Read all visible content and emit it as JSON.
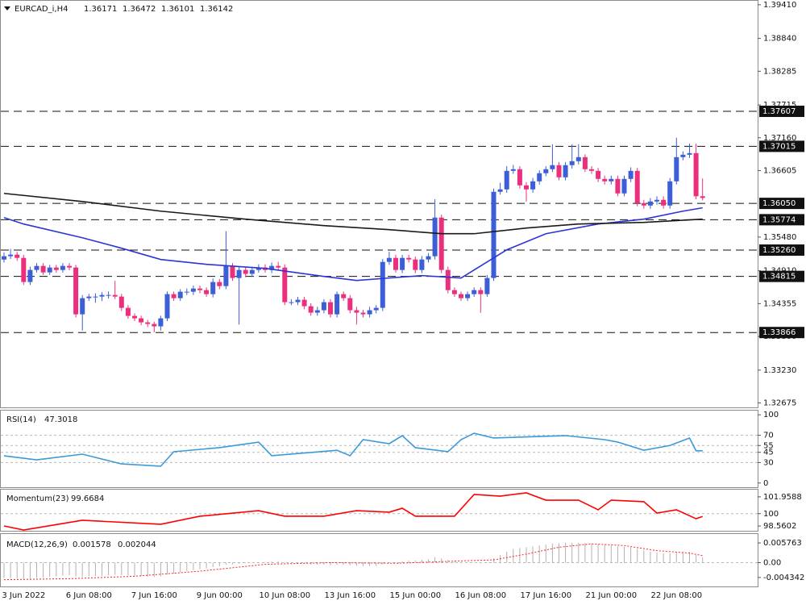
{
  "chart_data": [
    {
      "type": "candlestick",
      "symbol": "EURCAD_i,H4",
      "categories": [
        null,
        null,
        null,
        "3 Jun 2022",
        null,
        null,
        null,
        null,
        null,
        null,
        null,
        null,
        null,
        "6 Jun 08:00",
        null,
        null,
        null,
        null,
        null,
        null,
        null,
        null,
        null,
        "7 Jun 16:00",
        null,
        null,
        null,
        null,
        null,
        null,
        null,
        null,
        null,
        "9 Jun 00:00",
        null,
        null,
        null,
        null,
        null,
        null,
        null,
        null,
        null,
        "10 Jun 08:00",
        null,
        null,
        null,
        null,
        null,
        null,
        null,
        null,
        null,
        "13 Jun 16:00",
        null,
        null,
        null,
        null,
        null,
        null,
        null,
        null,
        null,
        "15 Jun 00:00",
        null,
        null,
        null,
        null,
        null,
        null,
        null,
        null,
        null,
        "16 Jun 08:00",
        null,
        null,
        null,
        null,
        null,
        null,
        null,
        null,
        null,
        "17 Jun 16:00",
        null,
        null,
        null,
        null,
        null,
        null,
        null,
        null,
        null,
        "21 Jun 00:00",
        null,
        null,
        null,
        null,
        null,
        null,
        null,
        null,
        null,
        "22 Jun 08:00",
        null,
        null,
        null,
        null
      ],
      "open": [
        1.351,
        1.35156,
        1.35183,
        1.35128,
        1.3472,
        1.34924,
        1.34992,
        1.34883,
        1.34965,
        1.34924,
        1.34992,
        1.34965,
        1.34174,
        1.34447,
        1.34474,
        1.34474,
        1.34501,
        1.34501,
        1.34474,
        1.34283,
        1.34147,
        1.34106,
        1.34038,
        1.34011,
        1.3397,
        1.34106,
        1.34515,
        1.34447,
        1.34556,
        1.34556,
        1.3461,
        1.34583,
        1.34515,
        1.3472,
        1.34651,
        1.34992,
        1.34788,
        1.34924,
        1.34858,
        1.34924,
        1.34965,
        1.34924,
        1.34992,
        1.34965,
        1.34379,
        1.34379,
        1.3442,
        1.34311,
        1.34202,
        1.34243,
        1.34379,
        1.34174,
        1.34515,
        1.34447,
        1.34243,
        1.34202,
        1.34174,
        1.34243,
        1.34283,
        1.3506,
        1.35128,
        1.34924,
        1.35128,
        1.35101,
        1.34924,
        1.35101,
        1.35156,
        1.3581,
        1.34924,
        1.34583,
        1.34515,
        1.34447,
        1.34515,
        1.34583,
        1.34515,
        1.34788,
        1.36246,
        1.36287,
        1.366,
        1.36628,
        1.36355,
        1.36287,
        1.36423,
        1.3656,
        1.36628,
        1.36696,
        1.36491,
        1.36696,
        1.36764,
        1.36832,
        1.36628,
        1.366,
        1.36464,
        1.36423,
        1.36464,
        1.36219,
        1.36464,
        1.366,
        1.36055,
        1.36014,
        1.36082,
        1.3611,
        1.36014,
        1.36423,
        1.36832,
        1.36873,
        1.369,
        1.36171
      ],
      "high": [
        1.3522,
        1.3528,
        1.3523,
        1.3518,
        1.3498,
        1.3504,
        1.3504,
        1.3501,
        1.3501,
        1.3504,
        1.3504,
        1.3501,
        1.345,
        1.3452,
        1.3453,
        1.3455,
        1.3456,
        1.3474,
        1.3452,
        1.3433,
        1.3419,
        1.3415,
        1.3408,
        1.3405,
        1.3415,
        1.3456,
        1.3456,
        1.346,
        1.3461,
        1.3466,
        1.3466,
        1.3463,
        1.3478,
        1.3477,
        1.3558,
        1.3504,
        1.3498,
        1.3498,
        1.3498,
        1.3502,
        1.3502,
        1.3505,
        1.3506,
        1.3502,
        1.3443,
        1.3447,
        1.3447,
        1.3436,
        1.343,
        1.3443,
        1.3443,
        1.3456,
        1.3456,
        1.345,
        1.343,
        1.3425,
        1.343,
        1.3433,
        1.3511,
        1.3523,
        1.3518,
        1.3518,
        1.3518,
        1.3515,
        1.3516,
        1.3521,
        1.3612,
        1.3586,
        1.3498,
        1.3463,
        1.3456,
        1.3456,
        1.3463,
        1.3463,
        1.3484,
        1.363,
        1.364,
        1.3668,
        1.367,
        1.3668,
        1.3641,
        1.3648,
        1.3661,
        1.3668,
        1.3705,
        1.3675,
        1.3675,
        1.3705,
        1.3705,
        1.3688,
        1.3668,
        1.3665,
        1.3652,
        1.3652,
        1.3652,
        1.3652,
        1.3666,
        1.3665,
        1.3611,
        1.3614,
        1.3617,
        1.3617,
        1.3648,
        1.3716,
        1.3693,
        1.3706,
        1.3706,
        1.36472
      ],
      "low": [
        1.3505,
        1.3511,
        1.3508,
        1.3467,
        1.3467,
        1.3488,
        1.3484,
        1.3484,
        1.3488,
        1.3488,
        1.3492,
        1.3412,
        1.339,
        1.344,
        1.3437,
        1.344,
        1.3444,
        1.3443,
        1.3423,
        1.341,
        1.3406,
        1.3399,
        1.3396,
        1.3387,
        1.339,
        1.3406,
        1.344,
        1.344,
        1.345,
        1.345,
        1.3453,
        1.3447,
        1.3446,
        1.346,
        1.346,
        1.3474,
        1.34,
        1.348,
        1.3481,
        1.3488,
        1.3488,
        1.3487,
        1.3491,
        1.3433,
        1.3433,
        1.3433,
        1.3426,
        1.3415,
        1.3415,
        1.3419,
        1.3412,
        1.3412,
        1.344,
        1.3419,
        1.34,
        1.3412,
        1.3412,
        1.3419,
        1.3423,
        1.3501,
        1.3488,
        1.3487,
        1.3505,
        1.3487,
        1.3487,
        1.3505,
        1.351,
        1.3487,
        1.3453,
        1.3447,
        1.344,
        1.344,
        1.3447,
        1.342,
        1.3447,
        1.3474,
        1.362,
        1.3623,
        1.3655,
        1.363,
        1.3608,
        1.3623,
        1.3637,
        1.3651,
        1.3658,
        1.3644,
        1.3644,
        1.3664,
        1.3671,
        1.3658,
        1.3655,
        1.3641,
        1.3637,
        1.3637,
        1.3617,
        1.3617,
        1.3641,
        1.36,
        1.3596,
        1.3596,
        1.3603,
        1.3596,
        1.3596,
        1.3637,
        1.3678,
        1.3682,
        1.3612,
        1.36101
      ],
      "close": [
        1.35156,
        1.35183,
        1.35128,
        1.3472,
        1.34924,
        1.34992,
        1.34883,
        1.34965,
        1.34924,
        1.34992,
        1.34965,
        1.34174,
        1.34447,
        1.34474,
        1.34474,
        1.34501,
        1.34501,
        1.34474,
        1.34283,
        1.34147,
        1.34106,
        1.34038,
        1.34011,
        1.3397,
        1.34106,
        1.34515,
        1.34447,
        1.34556,
        1.34556,
        1.3461,
        1.34583,
        1.34515,
        1.3472,
        1.34651,
        1.34992,
        1.34788,
        1.34924,
        1.34858,
        1.34924,
        1.34965,
        1.34924,
        1.34992,
        1.34965,
        1.34379,
        1.34379,
        1.3442,
        1.34311,
        1.34202,
        1.34243,
        1.34379,
        1.34174,
        1.34515,
        1.34447,
        1.34243,
        1.34202,
        1.34174,
        1.34243,
        1.34283,
        1.3506,
        1.35128,
        1.34924,
        1.35128,
        1.35101,
        1.34924,
        1.35101,
        1.35156,
        1.3581,
        1.34924,
        1.34583,
        1.34515,
        1.34447,
        1.34515,
        1.34583,
        1.34515,
        1.34788,
        1.36246,
        1.36287,
        1.366,
        1.36628,
        1.36355,
        1.36287,
        1.36423,
        1.3656,
        1.36628,
        1.36696,
        1.36491,
        1.36696,
        1.36764,
        1.36832,
        1.36628,
        1.366,
        1.36464,
        1.36423,
        1.36464,
        1.36219,
        1.36464,
        1.366,
        1.36055,
        1.36014,
        1.36082,
        1.3611,
        1.36014,
        1.36423,
        1.36832,
        1.36873,
        1.369,
        1.36171,
        1.36142
      ],
      "up_color": "#3c5ed6",
      "down_color": "#ec2f7c",
      "ylim": [
        1.326,
        1.3949
      ],
      "yticks": [
        {
          "value": 1.3941,
          "label": "1.39410"
        },
        {
          "value": 1.3884,
          "label": "1.38840"
        },
        1.38285,
        1.37715,
        {
          "value": 1.3716,
          "label": "1.37160"
        },
        1.36605,
        {
          "value": 1.3548,
          "label": "1.35480"
        },
        {
          "value": 1.3491,
          "label": "1.34910"
        },
        1.34355,
        {
          "value": 1.338,
          "label": "1.33800"
        },
        {
          "value": 1.3323,
          "label": "1.33230"
        },
        1.32675
      ],
      "price_levels": [
        1.37607,
        1.37015,
        {
          "value": 1.3605,
          "label": "1.36050"
        },
        1.35774,
        {
          "value": 1.3526,
          "label": "1.35260"
        },
        1.34815,
        1.33866
      ],
      "moving_averages": [
        {
          "color": "#2a35d8",
          "x": [
            0,
            3,
            12,
            18,
            24,
            31,
            40,
            49,
            54,
            59,
            64,
            70,
            72,
            77,
            83,
            91,
            98,
            104,
            107
          ],
          "values": [
            1.3581,
            1.35701,
            1.35469,
            1.35292,
            1.35101,
            1.35019,
            1.34951,
            1.34815,
            1.34747,
            1.34788,
            1.34829,
            1.34788,
            1.34924,
            1.35265,
            1.35537,
            1.35701,
            1.35783,
            1.35919,
            1.35975
          ]
        },
        {
          "color": "#1a1a1a",
          "x": [
            0,
            12,
            24,
            37,
            49,
            59,
            67,
            72,
            80,
            88,
            98,
            107
          ],
          "values": [
            1.36219,
            1.36082,
            1.35919,
            1.35783,
            1.35674,
            1.35606,
            1.35537,
            1.35537,
            1.35633,
            1.35701,
            1.35728,
            1.35783
          ]
        }
      ]
    },
    {
      "type": "line",
      "title": "RSI(14)",
      "color": "#3a9ad9",
      "x": [
        0,
        5,
        12,
        18,
        24,
        26,
        33,
        39,
        41,
        51,
        53,
        55,
        59,
        61,
        63,
        68,
        70,
        72,
        75,
        86,
        92,
        94,
        98,
        102,
        105,
        106,
        107
      ],
      "values": [
        39.9,
        34.0,
        42.3,
        28.0,
        24.6,
        45.9,
        51.8,
        60.0,
        40.0,
        48.0,
        40.0,
        63.6,
        57.7,
        69.5,
        51.8,
        45.9,
        63.6,
        73.0,
        66.0,
        69.5,
        63.6,
        60.0,
        48.0,
        55.0,
        66.0,
        47.3,
        47.3018
      ],
      "ylim": [
        -5,
        105
      ],
      "yticks": [
        100,
        70,
        55,
        45,
        30,
        0
      ],
      "levels": [
        70,
        55,
        45,
        30
      ]
    },
    {
      "type": "line",
      "title": "Momentum(23)",
      "color": "#ff0000",
      "x": [
        0,
        3,
        12,
        24,
        30,
        39,
        43,
        49,
        54,
        59,
        61,
        63,
        69,
        72,
        76,
        80,
        83,
        88,
        91,
        93,
        98,
        100,
        103,
        106,
        107
      ],
      "values": [
        98.57,
        98.1,
        99.23,
        98.76,
        99.7,
        100.35,
        99.7,
        99.7,
        100.35,
        100.17,
        100.63,
        99.7,
        99.7,
        102.23,
        102.04,
        102.42,
        101.57,
        101.57,
        100.45,
        101.57,
        101.39,
        100.07,
        100.45,
        99.41,
        99.6684
      ],
      "ylim": [
        98.1,
        102.7
      ],
      "yticks": [
        101.9588,
        100,
        98.5602
      ],
      "levels": [
        100
      ]
    },
    {
      "type": "macd",
      "title": "MACD(12,26,9)",
      "color": "#b0b0b0",
      "values": [
        -0.0045,
        -0.0046,
        -0.0047,
        -0.0048,
        -0.0047,
        -0.0045,
        -0.0044,
        -0.0042,
        -0.004,
        -0.0038,
        -0.0037,
        -0.004,
        -0.0041,
        -0.004,
        -0.0039,
        -0.0038,
        -0.0037,
        -0.0036,
        -0.0037,
        -0.0038,
        -0.0039,
        -0.004,
        -0.0041,
        -0.0042,
        -0.004,
        -0.0035,
        -0.0032,
        -0.0028,
        -0.0025,
        -0.0022,
        -0.0019,
        -0.0017,
        -0.0013,
        -0.0011,
        -0.0006,
        -0.0005,
        -0.0003,
        -0.0002,
        0.0,
        0.0001,
        0.0002,
        0.0003,
        0.0004,
        0.0002,
        0.0,
        -0.0001,
        -0.0003,
        -0.0005,
        -0.0006,
        -0.0006,
        -0.0008,
        -0.0006,
        -0.0006,
        -0.0008,
        -0.0009,
        -0.001,
        -0.001,
        -0.001,
        -0.0005,
        0.0,
        0.0001,
        0.0004,
        0.0006,
        0.0006,
        0.0008,
        0.001,
        0.0016,
        0.0012,
        0.0008,
        0.0005,
        0.0002,
        0.0,
        -0.0001,
        -0.0002,
        -0.0001,
        0.0012,
        0.0022,
        0.0032,
        0.004,
        0.0043,
        0.0045,
        0.0047,
        0.005,
        0.0053,
        0.0056,
        0.0057,
        0.0058,
        0.0058,
        0.0058,
        0.0057,
        0.0056,
        0.0054,
        0.0052,
        0.005,
        0.0047,
        0.0046,
        0.0045,
        0.004,
        0.0036,
        0.0032,
        0.003,
        0.0027,
        0.0027,
        0.0029,
        0.003,
        0.0031,
        0.0022,
        0.001578
      ],
      "signal": {
        "color": "#ff2020",
        "x": [
          0,
          10,
          20,
          30,
          40,
          50,
          60,
          70,
          75,
          80,
          85,
          90,
          95,
          100,
          105,
          107
        ],
        "values": [
          -0.005,
          -0.0047,
          -0.004,
          -0.0025,
          -0.0005,
          0.0,
          -0.0002,
          0.0005,
          0.0008,
          0.0025,
          0.0045,
          0.0055,
          0.005,
          0.0035,
          0.0028,
          0.002044
        ]
      },
      "ylim": [
        -0.0065,
        0.0079
      ],
      "yticks": [
        0.005763,
        {
          "value": 0,
          "label": "0.00"
        },
        -0.004342
      ],
      "levels": [
        0
      ]
    }
  ]
}
